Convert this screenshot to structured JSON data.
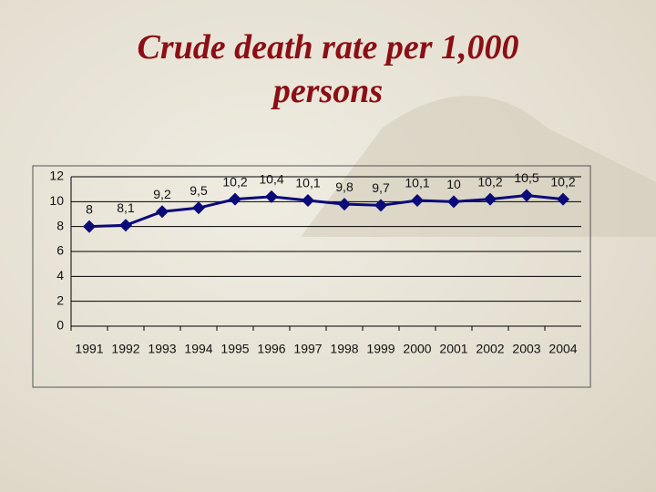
{
  "chart_data": {
    "type": "line",
    "title": "Crude death rate per 1,000 persons",
    "categories": [
      "1991",
      "1992",
      "1993",
      "1994",
      "1995",
      "1996",
      "1997",
      "1998",
      "1999",
      "2000",
      "2001",
      "2002",
      "2003",
      "2004"
    ],
    "values": [
      8,
      8.1,
      9.2,
      9.5,
      10.2,
      10.4,
      10.1,
      9.8,
      9.7,
      10.1,
      10,
      10.2,
      10.5,
      10.2
    ],
    "value_labels": [
      "8",
      "8,1",
      "9,2",
      "9,5",
      "10,2",
      "10,4",
      "10,1",
      "9,8",
      "9,7",
      "10,1",
      "10",
      "10,2",
      "10,5",
      "10,2"
    ],
    "color": "#0a0a7a",
    "ylim": [
      0,
      12
    ],
    "yticks": [
      0,
      2,
      4,
      6,
      8,
      10,
      12
    ],
    "grid": true
  }
}
